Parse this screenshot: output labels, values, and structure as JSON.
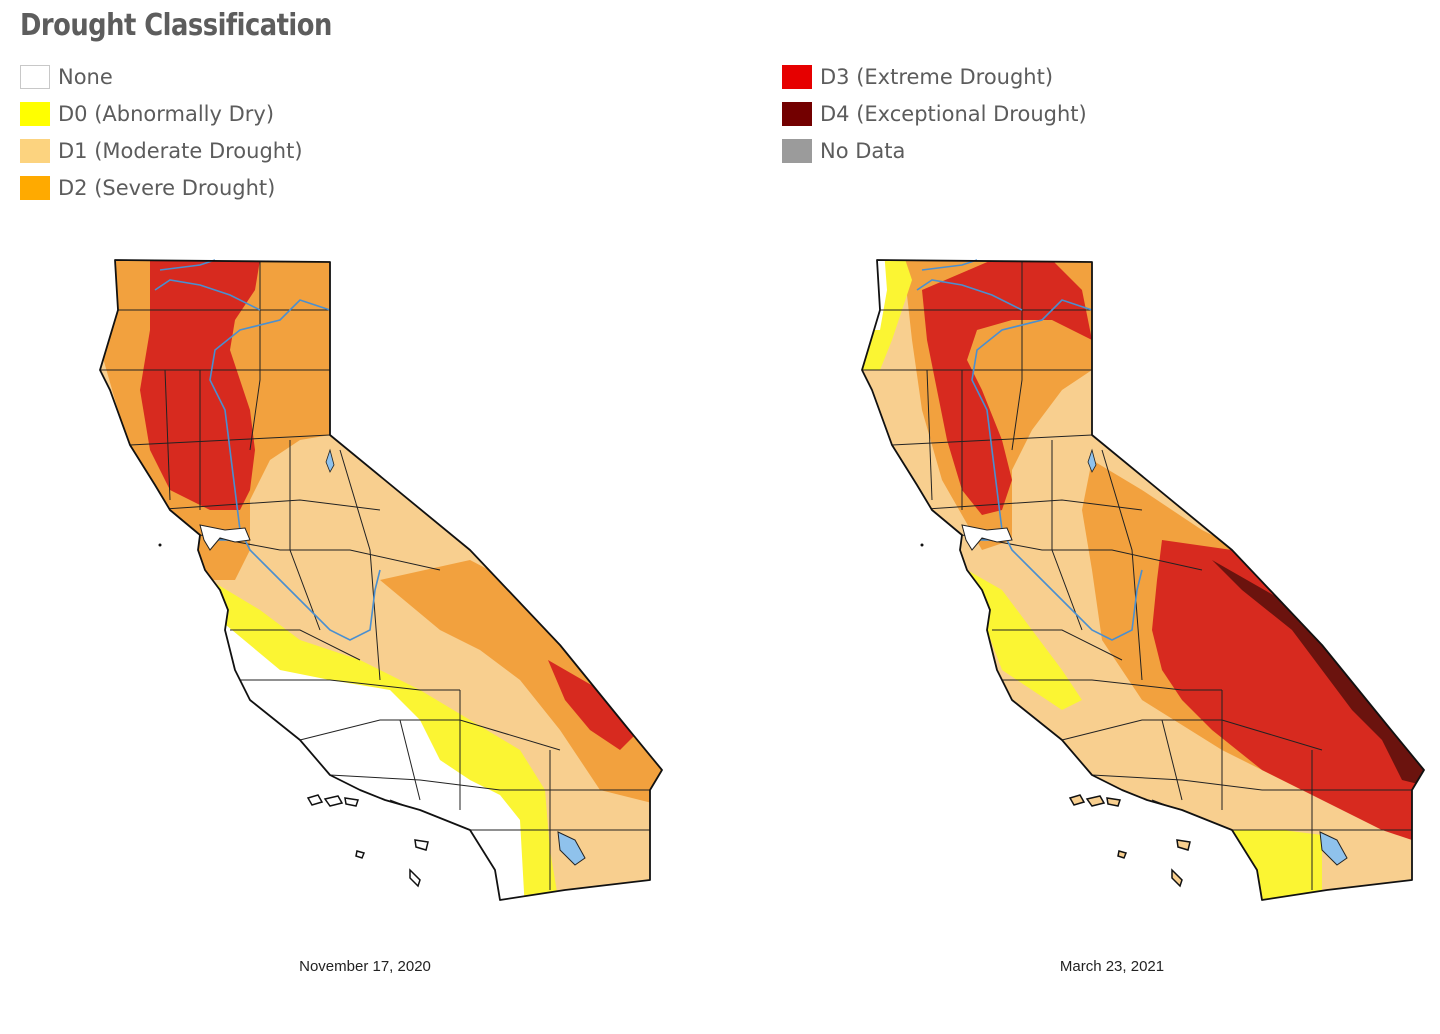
{
  "legend": {
    "title": "Drought Classification",
    "items": [
      {
        "label": "None",
        "color": "#ffffff"
      },
      {
        "label": "D0 (Abnormally Dry)",
        "color": "#ffff00"
      },
      {
        "label": "D1 (Moderate Drought)",
        "color": "#fcd37f"
      },
      {
        "label": "D2 (Severe Drought)",
        "color": "#ffaa00"
      },
      {
        "label": "D3 (Extreme Drought)",
        "color": "#e60000"
      },
      {
        "label": "D4 (Exceptional Drought)",
        "color": "#730000"
      },
      {
        "label": "No Data",
        "color": "#9b9b9b"
      }
    ]
  },
  "maps": [
    {
      "date": "November 17, 2020"
    },
    {
      "date": "March 23, 2021"
    }
  ],
  "colors": {
    "none": "#ffffff",
    "d0": "#fbf533",
    "d1": "#f8cf8f",
    "d2": "#f2a13e",
    "d3": "#d72a1f",
    "d4": "#6b130e",
    "water": "#8fc2ec",
    "river": "#4a8fd0",
    "border": "#111111"
  }
}
